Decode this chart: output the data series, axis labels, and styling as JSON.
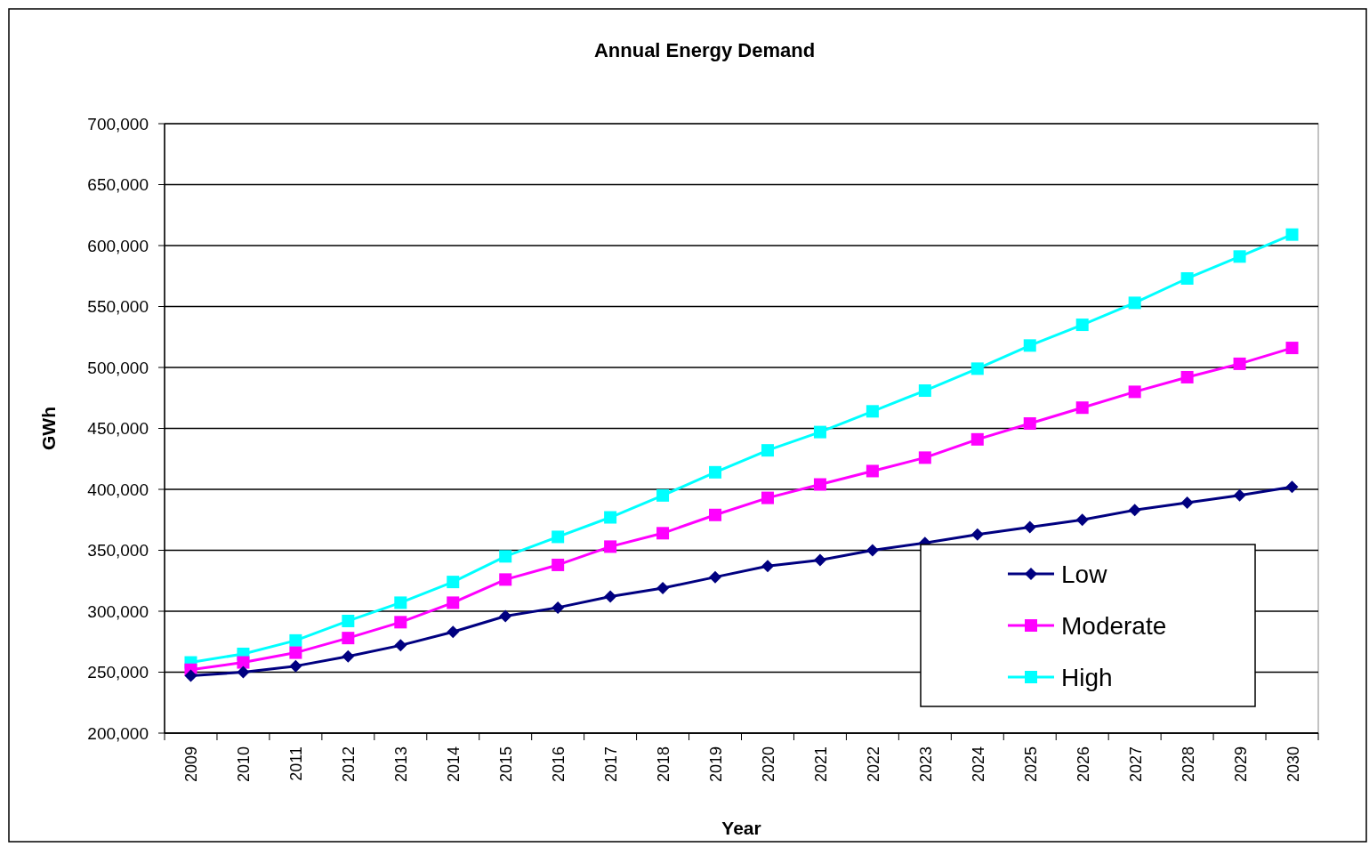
{
  "chart_data": {
    "type": "line",
    "title": "Annual Energy Demand",
    "xlabel": "Year",
    "ylabel": "GWh",
    "categories": [
      "2009",
      "2010",
      "2011",
      "2012",
      "2013",
      "2014",
      "2015",
      "2016",
      "2017",
      "2018",
      "2019",
      "2020",
      "2021",
      "2022",
      "2023",
      "2024",
      "2025",
      "2026",
      "2027",
      "2028",
      "2029",
      "2030"
    ],
    "series": [
      {
        "name": "Low",
        "color": "#000080",
        "marker": "diamond",
        "values": [
          247000,
          250000,
          255000,
          263000,
          272000,
          283000,
          296000,
          303000,
          312000,
          319000,
          328000,
          337000,
          342000,
          350000,
          356000,
          363000,
          369000,
          375000,
          383000,
          389000,
          395000,
          402000
        ]
      },
      {
        "name": "Moderate",
        "color": "#ff00ff",
        "marker": "square",
        "values": [
          252000,
          258000,
          266000,
          278000,
          291000,
          307000,
          326000,
          338000,
          353000,
          364000,
          379000,
          393000,
          404000,
          415000,
          426000,
          441000,
          454000,
          467000,
          480000,
          492000,
          503000,
          516000
        ]
      },
      {
        "name": "High",
        "color": "#00ffff",
        "marker": "square",
        "values": [
          258000,
          265000,
          276000,
          292000,
          307000,
          324000,
          345000,
          361000,
          377000,
          395000,
          414000,
          432000,
          447000,
          464000,
          481000,
          499000,
          518000,
          535000,
          553000,
          573000,
          591000,
          609000
        ]
      }
    ],
    "ylim": [
      200000,
      700000
    ],
    "yticks": [
      {
        "value": 200000,
        "label": "200,000"
      },
      {
        "value": 250000,
        "label": "250,000"
      },
      {
        "value": 300000,
        "label": "300,000"
      },
      {
        "value": 350000,
        "label": "350,000"
      },
      {
        "value": 400000,
        "label": "400,000"
      },
      {
        "value": 450000,
        "label": "450,000"
      },
      {
        "value": 500000,
        "label": "500,000"
      },
      {
        "value": 550000,
        "label": "550,000"
      },
      {
        "value": 600000,
        "label": "600,000"
      },
      {
        "value": 650000,
        "label": "650,000"
      },
      {
        "value": 700000,
        "label": "700,000"
      }
    ],
    "grid": "y",
    "legend": "bottom right",
    "line_style": "solid"
  }
}
